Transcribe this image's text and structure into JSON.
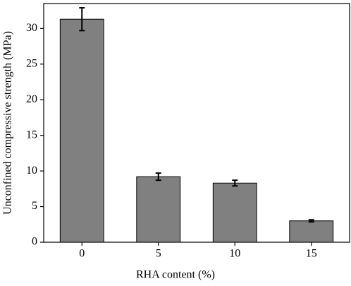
{
  "chart_data": {
    "type": "bar",
    "x_label": "RHA content (%)",
    "y_label": "Unconfined compressive strength (MPa)",
    "categories": [
      "0",
      "5",
      "10",
      "15"
    ],
    "values": [
      31.3,
      9.2,
      8.3,
      3.0
    ],
    "errors": [
      1.6,
      0.5,
      0.4,
      0.15
    ],
    "color": "#808080",
    "ylim": [
      0,
      33.5
    ],
    "yticks": [
      0,
      5,
      10,
      15,
      20,
      25,
      30
    ]
  }
}
